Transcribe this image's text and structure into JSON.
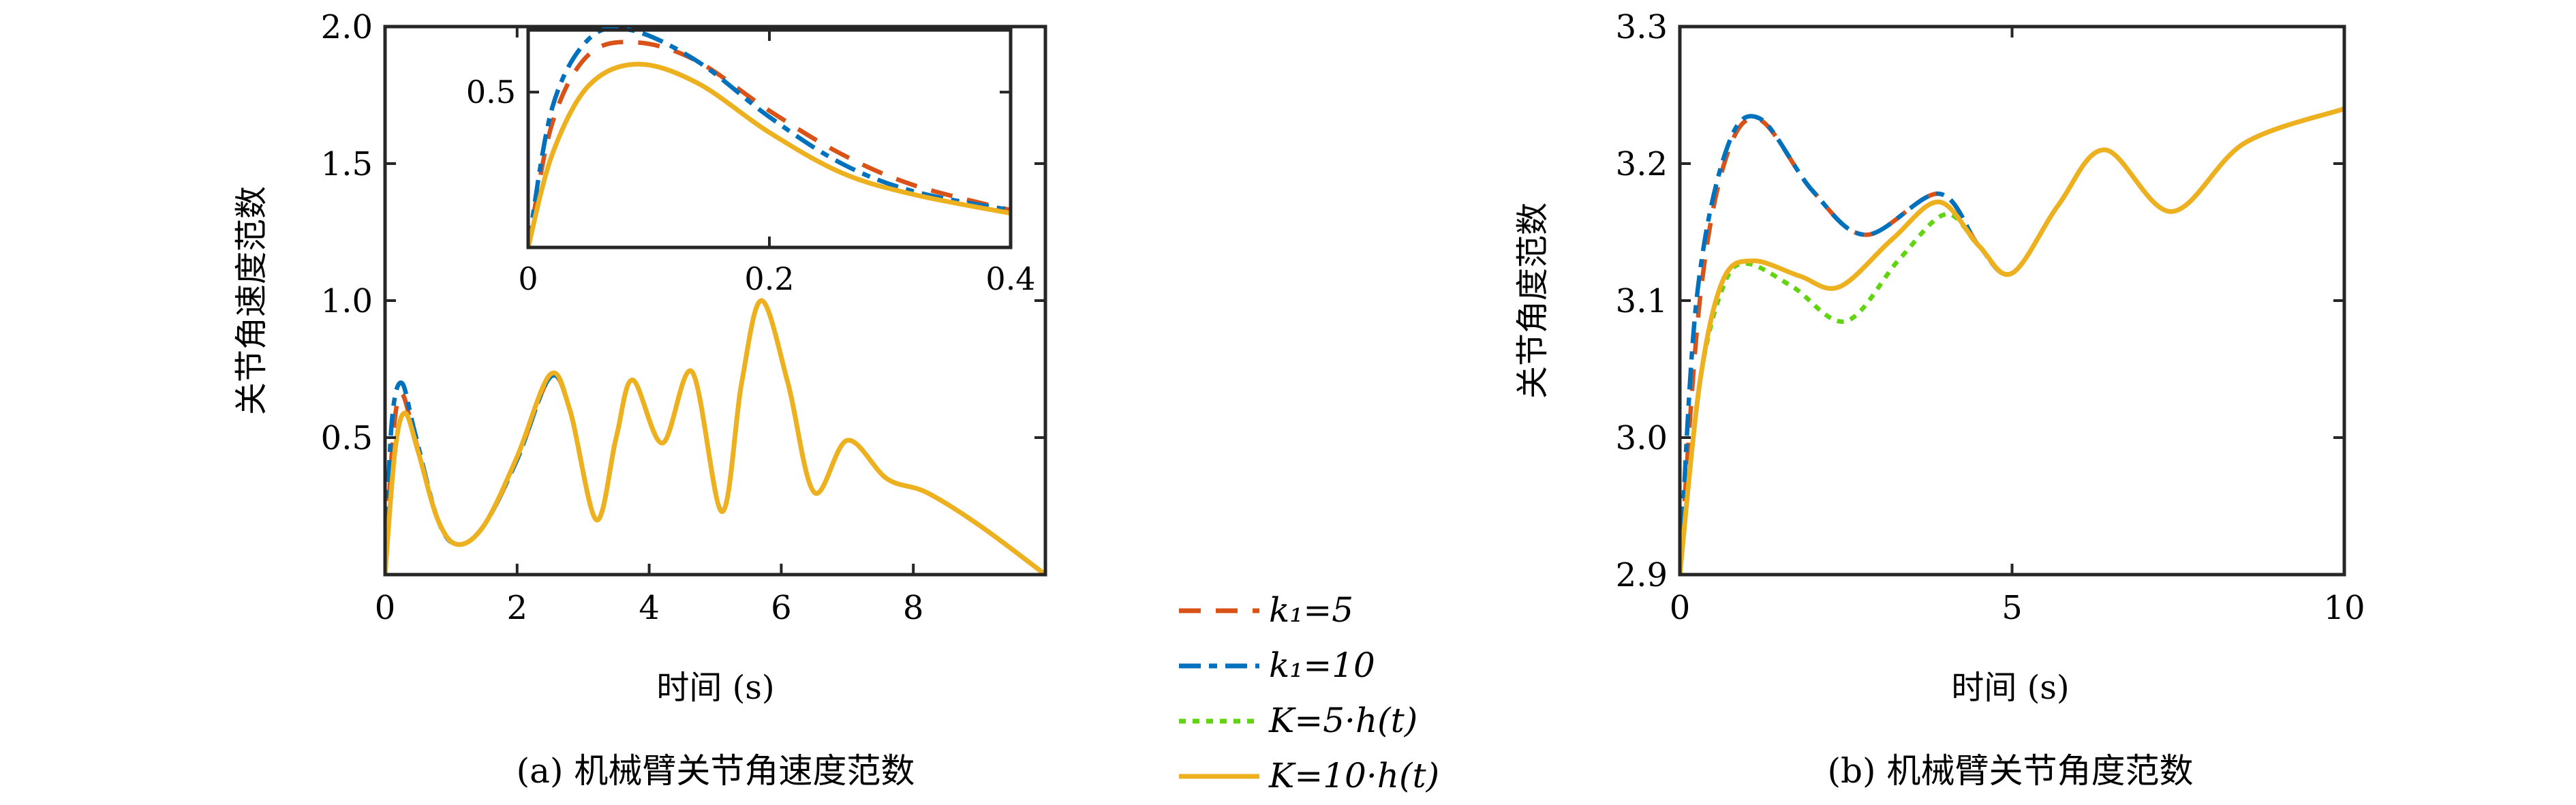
{
  "colors": {
    "k1_5": "#D95319",
    "k1_10": "#0072BD",
    "K5h": "#5FD40F",
    "K10h": "#EDB120",
    "axis": "#262626"
  },
  "legend": {
    "items": [
      {
        "key": "k1_5",
        "label": "k₁=5",
        "style": "dashed"
      },
      {
        "key": "k1_10",
        "label": "k₁=10",
        "style": "dashdot"
      },
      {
        "key": "K5h",
        "label": "K=5·h(t)",
        "style": "dotted"
      },
      {
        "key": "K10h",
        "label": "K=10·h(t)",
        "style": "solid"
      }
    ]
  },
  "chart_data": [
    {
      "type": "line",
      "caption": "(a) 机械臂关节角速度范数",
      "xlabel": "时间 (s)",
      "ylabel": "关节角速度范数",
      "xlim": [
        0,
        10
      ],
      "ylim": [
        0,
        2
      ],
      "xticks": [
        0,
        2,
        4,
        6,
        8
      ],
      "yticks": [
        0.5,
        1.0,
        1.5,
        2.0
      ],
      "xtick_labels": [
        "0",
        "2",
        "4",
        "6",
        "8"
      ],
      "ytick_labels": [
        "0.5",
        "1.0",
        "1.5",
        "2.0"
      ],
      "series": [
        {
          "key": "k1_5",
          "points": [
            [
              0,
              0
            ],
            [
              0.12,
              0.5
            ],
            [
              0.25,
              0.66
            ],
            [
              0.45,
              0.5
            ],
            [
              0.8,
              0.2
            ],
            [
              1.1,
              0.11
            ],
            [
              1.5,
              0.18
            ],
            [
              2,
              0.42
            ],
            [
              2.5,
              0.72
            ],
            [
              2.8,
              0.6
            ],
            [
              3.2,
              0.2
            ],
            [
              3.5,
              0.5
            ],
            [
              3.75,
              0.71
            ],
            [
              4.2,
              0.48
            ],
            [
              4.65,
              0.74
            ],
            [
              5.1,
              0.23
            ],
            [
              5.4,
              0.7
            ],
            [
              5.7,
              1.0
            ],
            [
              6.1,
              0.7
            ],
            [
              6.5,
              0.3
            ],
            [
              7.0,
              0.49
            ],
            [
              7.6,
              0.35
            ],
            [
              8.2,
              0.3
            ],
            [
              9,
              0.18
            ],
            [
              10,
              0
            ]
          ]
        },
        {
          "key": "k1_10",
          "points": [
            [
              0,
              0
            ],
            [
              0.1,
              0.55
            ],
            [
              0.25,
              0.7
            ],
            [
              0.45,
              0.52
            ],
            [
              0.8,
              0.2
            ],
            [
              1.1,
              0.11
            ],
            [
              1.5,
              0.18
            ],
            [
              2,
              0.42
            ],
            [
              2.5,
              0.72
            ],
            [
              2.8,
              0.6
            ],
            [
              3.2,
              0.2
            ],
            [
              3.5,
              0.5
            ],
            [
              3.75,
              0.71
            ],
            [
              4.2,
              0.48
            ],
            [
              4.65,
              0.74
            ],
            [
              5.1,
              0.23
            ],
            [
              5.4,
              0.7
            ],
            [
              5.7,
              1.0
            ],
            [
              6.1,
              0.7
            ],
            [
              6.5,
              0.3
            ],
            [
              7.0,
              0.49
            ],
            [
              7.6,
              0.35
            ],
            [
              8.2,
              0.3
            ],
            [
              9,
              0.18
            ],
            [
              10,
              0
            ]
          ]
        },
        {
          "key": "K10h",
          "points": [
            [
              0,
              0
            ],
            [
              0.15,
              0.45
            ],
            [
              0.3,
              0.59
            ],
            [
              0.5,
              0.45
            ],
            [
              0.8,
              0.2
            ],
            [
              1.1,
              0.11
            ],
            [
              1.5,
              0.18
            ],
            [
              2,
              0.43
            ],
            [
              2.5,
              0.73
            ],
            [
              2.8,
              0.6
            ],
            [
              3.2,
              0.2
            ],
            [
              3.5,
              0.5
            ],
            [
              3.75,
              0.71
            ],
            [
              4.2,
              0.48
            ],
            [
              4.65,
              0.74
            ],
            [
              5.1,
              0.23
            ],
            [
              5.4,
              0.7
            ],
            [
              5.7,
              1.0
            ],
            [
              6.1,
              0.7
            ],
            [
              6.5,
              0.3
            ],
            [
              7.0,
              0.49
            ],
            [
              7.6,
              0.35
            ],
            [
              8.2,
              0.3
            ],
            [
              9,
              0.18
            ],
            [
              10,
              0
            ]
          ]
        }
      ],
      "inset": {
        "xlim": [
          0,
          0.4
        ],
        "ylim": [
          0,
          0.7
        ],
        "xticks": [
          0,
          0.2,
          0.4
        ],
        "yticks": [
          0.5
        ],
        "xtick_labels": [
          "0",
          "0.2",
          "0.4"
        ],
        "ytick_labels": [
          "0.5"
        ],
        "series": [
          {
            "key": "k1_5",
            "points": [
              [
                0,
                0
              ],
              [
                0.02,
                0.4
              ],
              [
                0.05,
                0.62
              ],
              [
                0.09,
                0.66
              ],
              [
                0.14,
                0.6
              ],
              [
                0.2,
                0.44
              ],
              [
                0.26,
                0.3
              ],
              [
                0.32,
                0.2
              ],
              [
                0.4,
                0.12
              ]
            ]
          },
          {
            "key": "k1_10",
            "points": [
              [
                0,
                0
              ],
              [
                0.02,
                0.45
              ],
              [
                0.05,
                0.67
              ],
              [
                0.085,
                0.7
              ],
              [
                0.14,
                0.6
              ],
              [
                0.2,
                0.42
              ],
              [
                0.26,
                0.27
              ],
              [
                0.32,
                0.18
              ],
              [
                0.4,
                0.12
              ]
            ]
          },
          {
            "key": "K10h",
            "points": [
              [
                0,
                0
              ],
              [
                0.02,
                0.3
              ],
              [
                0.05,
                0.52
              ],
              [
                0.09,
                0.59
              ],
              [
                0.14,
                0.53
              ],
              [
                0.2,
                0.37
              ],
              [
                0.26,
                0.24
              ],
              [
                0.32,
                0.17
              ],
              [
                0.4,
                0.11
              ]
            ]
          }
        ]
      }
    },
    {
      "type": "line",
      "caption": "(b) 机械臂关节角度范数",
      "xlabel": "时间 (s)",
      "ylabel": "关节角度范数",
      "xlim": [
        0,
        10
      ],
      "ylim": [
        2.9,
        3.3
      ],
      "xticks": [
        0,
        5,
        10
      ],
      "yticks": [
        2.9,
        3.0,
        3.1,
        3.2,
        3.3
      ],
      "xtick_labels": [
        "0",
        "5",
        "10"
      ],
      "ytick_labels": [
        "2.9",
        "3.0",
        "3.1",
        "3.2",
        "3.3"
      ],
      "series": [
        {
          "key": "k1_5",
          "points": [
            [
              0,
              2.9
            ],
            [
              0.3,
              3.1
            ],
            [
              0.7,
              3.205
            ],
            [
              1.2,
              3.232
            ],
            [
              2,
              3.18
            ],
            [
              2.8,
              3.148
            ],
            [
              3.9,
              3.178
            ],
            [
              4.5,
              3.14
            ],
            [
              5.0,
              3.12
            ],
            [
              5.7,
              3.17
            ],
            [
              6.4,
              3.21
            ],
            [
              7.4,
              3.165
            ],
            [
              8.5,
              3.215
            ],
            [
              10,
              3.24
            ]
          ]
        },
        {
          "key": "k1_10",
          "points": [
            [
              0,
              2.9
            ],
            [
              0.25,
              3.1
            ],
            [
              0.7,
              3.21
            ],
            [
              1.2,
              3.233
            ],
            [
              2,
              3.18
            ],
            [
              2.8,
              3.148
            ],
            [
              3.9,
              3.178
            ],
            [
              4.5,
              3.14
            ],
            [
              5.0,
              3.12
            ],
            [
              5.7,
              3.17
            ],
            [
              6.4,
              3.21
            ],
            [
              7.4,
              3.165
            ],
            [
              8.5,
              3.215
            ],
            [
              10,
              3.24
            ]
          ]
        },
        {
          "key": "K5h",
          "points": [
            [
              0,
              2.9
            ],
            [
              0.3,
              3.04
            ],
            [
              0.65,
              3.11
            ],
            [
              1.0,
              3.127
            ],
            [
              1.7,
              3.11
            ],
            [
              2.5,
              3.085
            ],
            [
              3.3,
              3.13
            ],
            [
              4.0,
              3.163
            ],
            [
              4.5,
              3.14
            ],
            [
              5.0,
              3.12
            ],
            [
              5.7,
              3.17
            ],
            [
              6.4,
              3.21
            ],
            [
              7.4,
              3.165
            ],
            [
              8.5,
              3.215
            ],
            [
              10,
              3.24
            ]
          ]
        },
        {
          "key": "K10h",
          "points": [
            [
              0,
              2.9
            ],
            [
              0.3,
              3.04
            ],
            [
              0.65,
              3.115
            ],
            [
              1.1,
              3.129
            ],
            [
              1.8,
              3.118
            ],
            [
              2.4,
              3.11
            ],
            [
              3.2,
              3.145
            ],
            [
              3.9,
              3.172
            ],
            [
              4.5,
              3.14
            ],
            [
              5.0,
              3.12
            ],
            [
              5.7,
              3.17
            ],
            [
              6.4,
              3.21
            ],
            [
              7.4,
              3.165
            ],
            [
              8.5,
              3.215
            ],
            [
              10,
              3.24
            ]
          ]
        }
      ]
    }
  ]
}
